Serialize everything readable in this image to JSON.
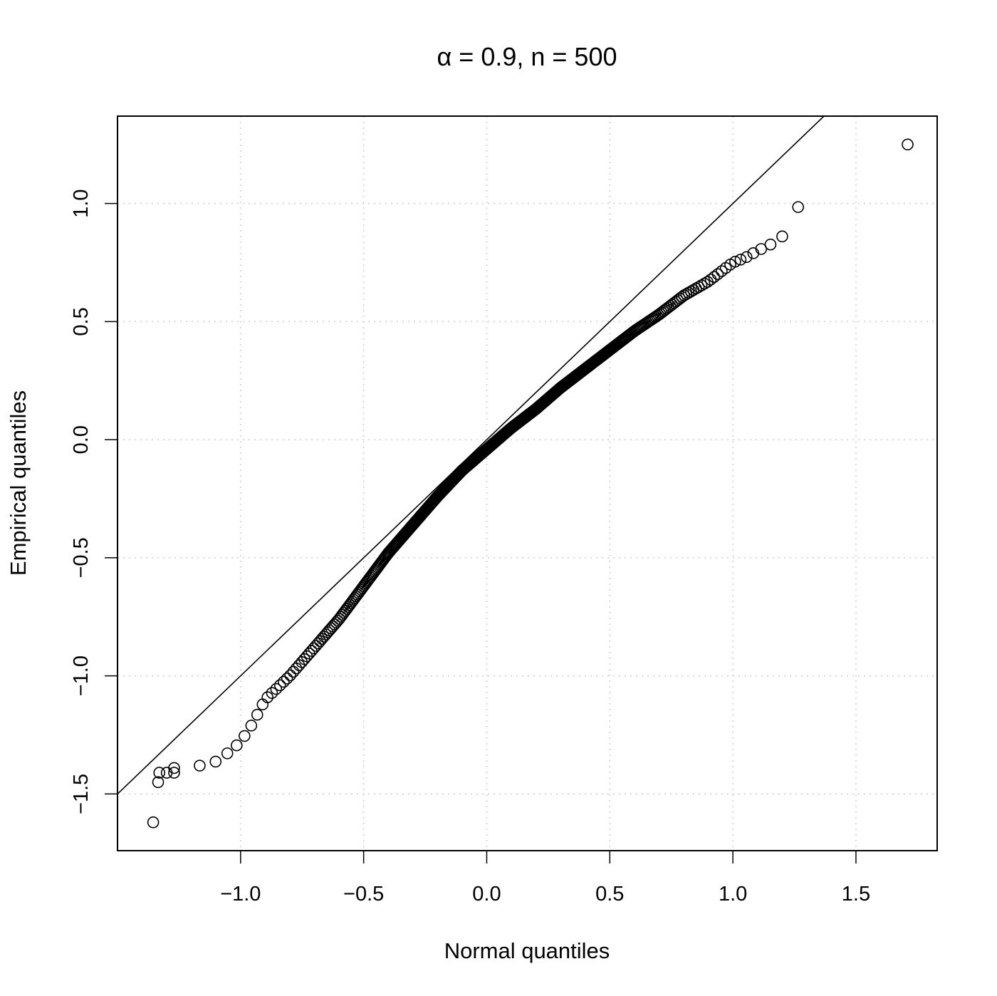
{
  "chart_data": {
    "type": "scatter",
    "title": "α = 0.9, n = 500",
    "xlabel": "Normal quantiles",
    "ylabel": "Empirical quantiles",
    "xlim": [
      -1.5,
      1.83
    ],
    "ylim": [
      -1.74,
      1.37
    ],
    "x_ticks": [
      -1.0,
      -0.5,
      0.0,
      0.5,
      1.0,
      1.5
    ],
    "x_tick_labels": [
      "−1.0",
      "−0.5",
      "0.0",
      "0.5",
      "1.0",
      "1.5"
    ],
    "y_ticks": [
      -1.5,
      -1.0,
      -0.5,
      0.0,
      0.5,
      1.0
    ],
    "y_tick_labels": [
      "−1.5",
      "−1.0",
      "−0.5",
      "0.0",
      "0.5",
      "1.0"
    ],
    "grid": true,
    "reference_line": {
      "intercept": 0,
      "slope": 1
    },
    "marker": "open-circle",
    "n_points": 500,
    "curve_knots": [
      [
        -1.166,
        -1.38
      ],
      [
        -1.09,
        -1.36
      ],
      [
        -1.0,
        -1.28
      ],
      [
        -0.95,
        -1.2
      ],
      [
        -0.9,
        -1.1
      ],
      [
        -0.8,
        -1.0
      ],
      [
        -0.7,
        -0.88
      ],
      [
        -0.6,
        -0.76
      ],
      [
        -0.5,
        -0.62
      ],
      [
        -0.4,
        -0.48
      ],
      [
        -0.3,
        -0.36
      ],
      [
        -0.2,
        -0.24
      ],
      [
        -0.1,
        -0.13
      ],
      [
        0.0,
        -0.04
      ],
      [
        0.1,
        0.05
      ],
      [
        0.2,
        0.13
      ],
      [
        0.3,
        0.22
      ],
      [
        0.4,
        0.3
      ],
      [
        0.5,
        0.38
      ],
      [
        0.6,
        0.46
      ],
      [
        0.7,
        0.53
      ],
      [
        0.8,
        0.61
      ],
      [
        0.9,
        0.67
      ],
      [
        1.0,
        0.75
      ],
      [
        1.05,
        0.77
      ],
      [
        1.1,
        0.8
      ],
      [
        1.16,
        0.83
      ],
      [
        1.2,
        0.86
      ],
      [
        1.225,
        0.9
      ],
      [
        1.25,
        0.95
      ],
      [
        1.265,
        0.985
      ]
    ],
    "tail_points": [
      [
        -1.355,
        -1.62
      ],
      [
        -1.335,
        -1.45
      ],
      [
        -1.33,
        -1.41
      ],
      [
        -1.3,
        -1.41
      ],
      [
        -1.27,
        -1.41
      ],
      [
        -1.27,
        -1.39
      ],
      [
        1.71,
        1.25
      ]
    ]
  }
}
